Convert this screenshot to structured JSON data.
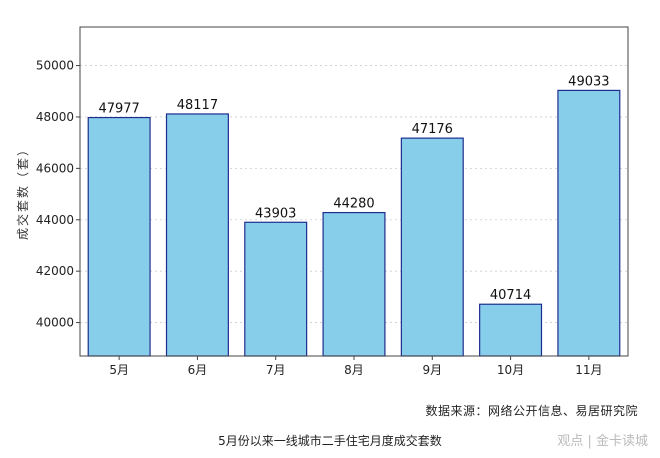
{
  "chart_data": {
    "type": "bar",
    "title": "",
    "xlabel": "",
    "ylabel": "成交套数（套）",
    "categories": [
      "5月",
      "6月",
      "7月",
      "8月",
      "9月",
      "10月",
      "11月"
    ],
    "values": [
      47977,
      48117,
      43903,
      44280,
      47176,
      40714,
      49033
    ],
    "ylim": [
      38700,
      51500
    ],
    "yticks": [
      40000,
      42000,
      44000,
      46000,
      48000,
      50000
    ],
    "grid": "horizontal, dotted",
    "bar_color": "#87CEEB",
    "bar_edge_color": "#1f2d8f"
  },
  "source_note": "数据来源：网络公开信息、易居研究院",
  "caption": "5月份以来一线城市二手住宅月度成交套数",
  "watermark": "观点 | 金卡读城"
}
